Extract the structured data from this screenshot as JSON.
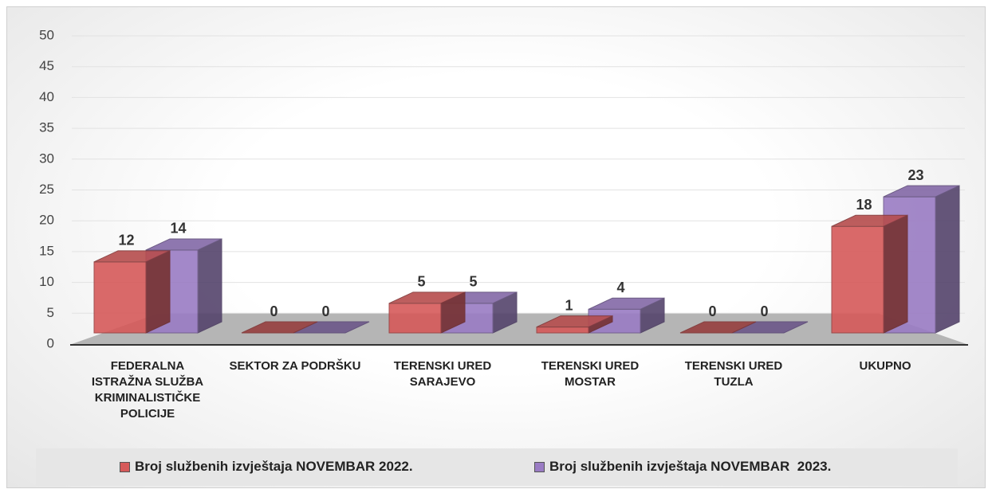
{
  "chart_data": {
    "type": "bar3d",
    "categories": [
      "FEDERALNA ISTRAŽNA SLUŽBA KRIMINALISTIČKE POLICIJE",
      "SEKTOR ZA PODRŠKU",
      "TERENSKI URED SARAJEVO",
      "TERENSKI URED MOSTAR",
      "TERENSKI URED TUZLA",
      "UKUPNO"
    ],
    "series": [
      {
        "name": "Broj službenih izvještaja NOVEMBAR 2022.",
        "color": "#d65a5a",
        "values": [
          12,
          0,
          5,
          1,
          0,
          18
        ]
      },
      {
        "name": "Broj službenih izvještaja NOVEMBAR  2023.",
        "color": "#9a7cc4",
        "values": [
          14,
          0,
          5,
          4,
          0,
          23
        ]
      }
    ],
    "ylim": [
      0,
      50
    ],
    "yticks": [
      0,
      5,
      10,
      15,
      20,
      25,
      30,
      35,
      40,
      45,
      50
    ],
    "grid": true,
    "legend": "bottom"
  }
}
